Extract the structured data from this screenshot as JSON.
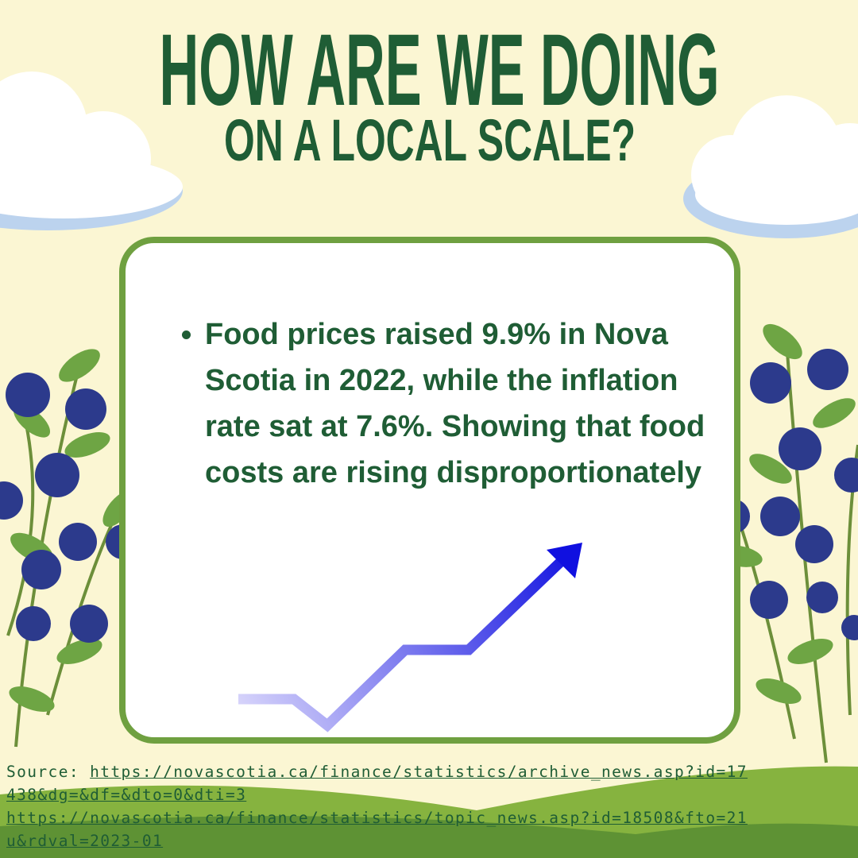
{
  "header": {
    "title": "HOW ARE WE DOING",
    "subtitle": "ON A LOCAL SCALE?"
  },
  "card": {
    "bullets": [
      "Food prices raised 9.9% in Nova Scotia in 2022, while the inflation rate sat at 7.6%. Showing that food costs are rising disproportionately"
    ]
  },
  "footer": {
    "source_label": "Source:",
    "links": [
      "https://novascotia.ca/finance/statistics/archive_news.asp?id=17438&dg=&df=&dto=0&dti=3",
      "https://novascotia.ca/finance/statistics/topic_news.asp?id=18508&fto=21u&rdval=2023-01"
    ]
  }
}
